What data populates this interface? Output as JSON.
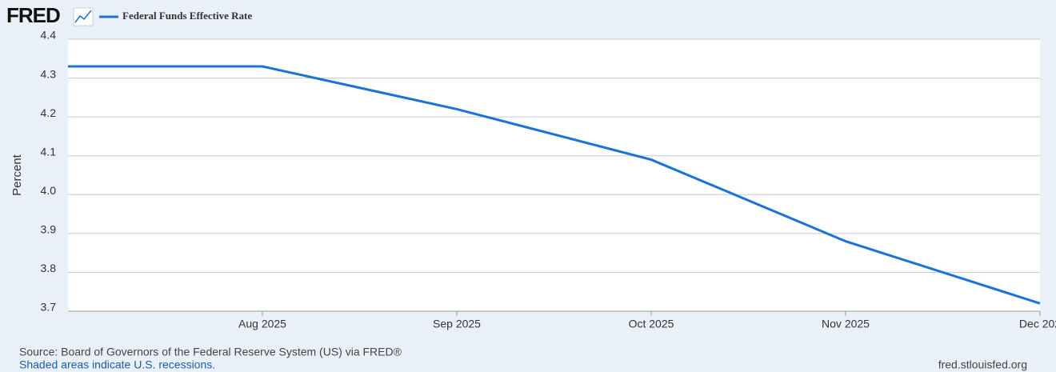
{
  "chart_data": {
    "type": "line",
    "logo": "FRED",
    "y_label": "Percent",
    "categories": [
      null,
      "Aug 2025",
      "Sep 2025",
      "Oct 2025",
      "Nov 2025",
      "Dec 202"
    ],
    "series": [
      {
        "name": "Federal Funds Effective Rate",
        "color": "#1a73d8",
        "values": [
          4.33,
          4.33,
          4.22,
          4.09,
          3.88,
          3.72
        ]
      }
    ],
    "ylim": [
      3.7,
      4.4
    ],
    "yticks": [
      3.7,
      3.8,
      3.9,
      {
        "value": 4,
        "label": "4.0"
      },
      4.1,
      4.2,
      4.3,
      4.4
    ],
    "grid": true,
    "source": "Source: Board of Governors of the Federal Reserve System (US) via FRED®",
    "note": "Shaded areas indicate U.S. recessions.",
    "site": "fred.stlouisfed.org"
  }
}
